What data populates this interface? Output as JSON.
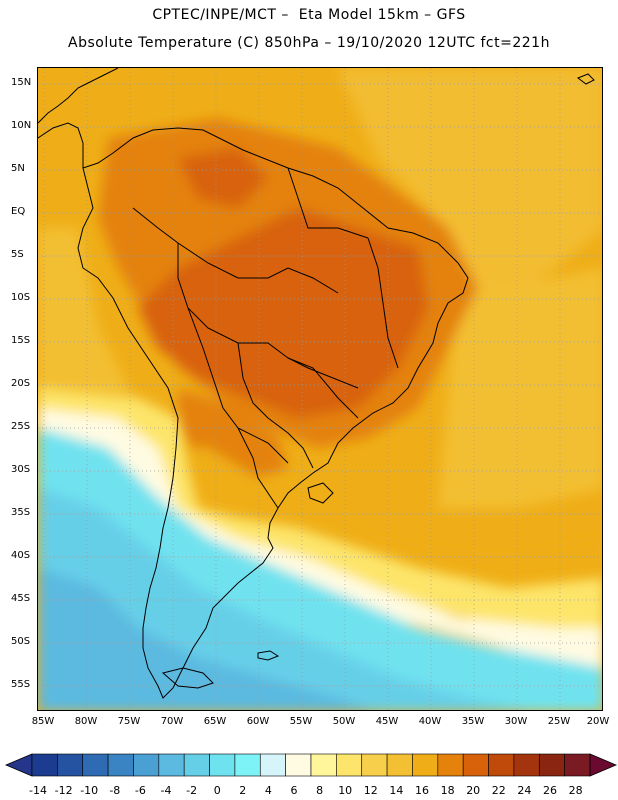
{
  "header": {
    "title_line1": "CPTEC/INPE/MCT –  Eta Model 15km – GFS",
    "title_line2": "Absolute Temperature (C) 850hPa – 19/10/2020 12UTC fct=221h"
  },
  "map": {
    "lat_labels": [
      "15N",
      "10N",
      "5N",
      "EQ",
      "5S",
      "10S",
      "15S",
      "20S",
      "25S",
      "30S",
      "35S",
      "40S",
      "45S",
      "50S",
      "55S"
    ],
    "lon_labels": [
      "85W",
      "80W",
      "75W",
      "70W",
      "65W",
      "60W",
      "55W",
      "50W",
      "45W",
      "40W",
      "35W",
      "30W",
      "25W",
      "20W"
    ]
  },
  "colorbar": {
    "labels": [
      "-14",
      "-12",
      "-10",
      "-8",
      "-6",
      "-4",
      "-2",
      "0",
      "2",
      "4",
      "6",
      "8",
      "10",
      "12",
      "14",
      "16",
      "18",
      "20",
      "22",
      "24",
      "26",
      "28"
    ],
    "colors": [
      "#1c3d8f",
      "#2553a1",
      "#2f6bb2",
      "#3a84c3",
      "#4a9fd3",
      "#5cb9e0",
      "#66cfe8",
      "#6fe2ef",
      "#7df2f7",
      "#d6f5fb",
      "#fffbe2",
      "#fff59a",
      "#fde56b",
      "#f8cf4b",
      "#f3bf33",
      "#efae18",
      "#e4820b",
      "#d8620a",
      "#c04a0a",
      "#a4340d",
      "#8a2512",
      "#7a1a22"
    ],
    "left_arrow_color": "#25358a",
    "right_arrow_color": "#6b0a30"
  }
}
